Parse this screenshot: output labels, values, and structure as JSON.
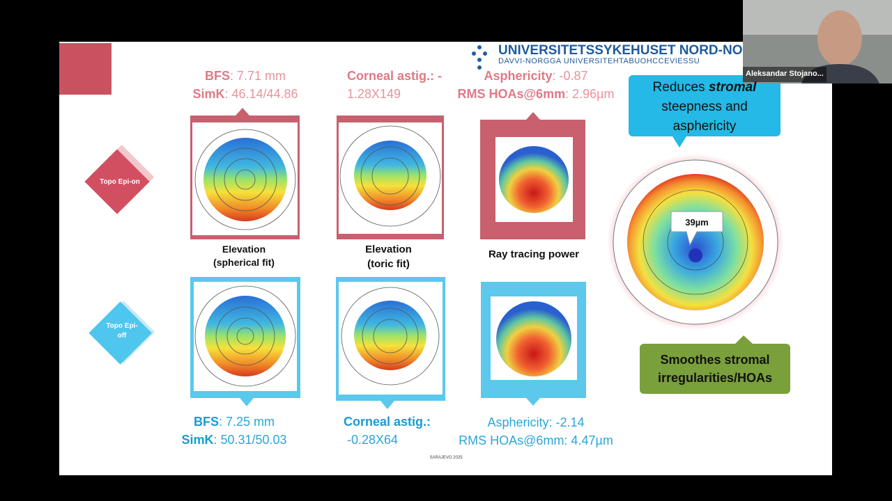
{
  "logo": {
    "title": "UNIVERSITETSSYKEHUSET NORD-NORGE",
    "subtitle": "DAVVI-NORGGA UNIVERSITEHTABUOHCCEVIESSU"
  },
  "epi_on": {
    "label": "Topo Epi-on",
    "bfs": {
      "label": "BFS",
      "value": ": 7.71 mm"
    },
    "simk": {
      "label": "SimK",
      "value": ": 46.14/44.86"
    },
    "astig": {
      "label": "Corneal  astig.: -",
      "value": "1.28X149"
    },
    "asphericity": {
      "label": "Asphericity",
      "value": ": -0.87"
    },
    "rms": {
      "label": "RMS HOAs@6mm",
      "value": ": 2.96µm"
    }
  },
  "captions": [
    {
      "line1": "Elevation",
      "line2": "(spherical fit)"
    },
    {
      "line1": "Elevation",
      "line2": "(toric fit)"
    },
    {
      "line1": "Ray tracing power"
    }
  ],
  "epi_off": {
    "label": "Topo Epi-off",
    "bfs": {
      "label": "BFS",
      "value": ": 7.25 mm"
    },
    "simk": {
      "label": "SimK",
      "value": ": 50.31/50.03"
    },
    "astig": {
      "label": "Corneal astig.:",
      "value": "-0.28X64"
    },
    "asphericity": "Asphericity: -2.14",
    "rms": "RMS HOAs@6mm: 4.47µm"
  },
  "callouts": {
    "top": {
      "before": "Reduces ",
      "emphasis": "stromal",
      "after": "steepness and asphericity"
    },
    "map_label": "39µm",
    "bottom": "Smoothes stromal irregularities/HOAs"
  },
  "footer": "SARAJEVO 2025",
  "participant": "Aleksandar Stojano..."
}
